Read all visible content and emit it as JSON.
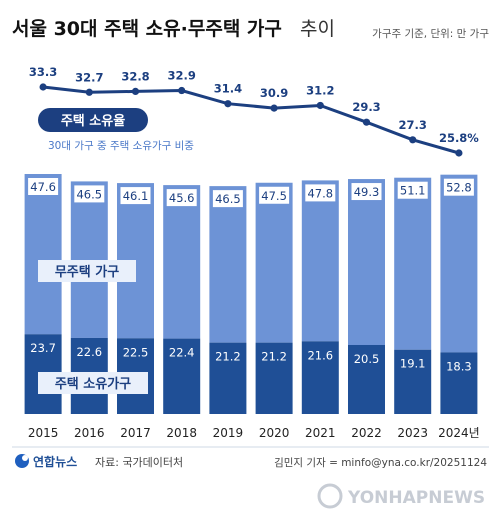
{
  "chart_data": [
    {
      "type": "line",
      "title": "서울 30대 주택 소유·무주택 가구",
      "title_suffix": "추이",
      "unit_note": "가구주 기준, 단위: 만 가구",
      "x": [
        "2015",
        "2016",
        "2017",
        "2018",
        "2019",
        "2020",
        "2021",
        "2022",
        "2023",
        "2024년"
      ],
      "series": [
        {
          "name": "주택 소유율",
          "subtitle": "30대 가구 중 주택 소유가구 비중",
          "values": [
            33.3,
            32.7,
            32.8,
            32.9,
            31.4,
            30.9,
            31.2,
            29.3,
            27.3,
            25.8
          ],
          "labels": [
            "33.3",
            "32.7",
            "32.8",
            "32.9",
            "31.4",
            "30.9",
            "31.2",
            "29.3",
            "27.3",
            "25.8%"
          ],
          "color": "#1c3f80"
        }
      ]
    },
    {
      "type": "bar",
      "stacked": true,
      "categories": [
        "2015",
        "2016",
        "2017",
        "2018",
        "2019",
        "2020",
        "2021",
        "2022",
        "2023",
        "2024년"
      ],
      "series": [
        {
          "name": "주택 소유가구",
          "values": [
            23.7,
            22.6,
            22.5,
            22.4,
            21.2,
            21.2,
            21.6,
            20.5,
            19.1,
            18.3
          ],
          "color": "#1f4f96"
        },
        {
          "name": "무주택 가구",
          "values": [
            47.6,
            46.5,
            46.1,
            45.6,
            46.5,
            47.5,
            47.8,
            49.3,
            51.1,
            52.8
          ],
          "color": "#6d93d6"
        }
      ]
    }
  ],
  "footer": {
    "logo_text": "연합뉴스",
    "source": "자료: 국가데이터처",
    "credit": "김민지 기자 = minfo@yna.co.kr/20251124",
    "watermark": "YONHAPNEWS"
  },
  "colors": {
    "dark_navy": "#1c3f80",
    "owned_bar": "#1f4f96",
    "nonowned_bar": "#6d93d6",
    "label_box": "#e9f0fb",
    "value_label_box": "#ffffff",
    "subtitle_text": "#4a78c8"
  }
}
